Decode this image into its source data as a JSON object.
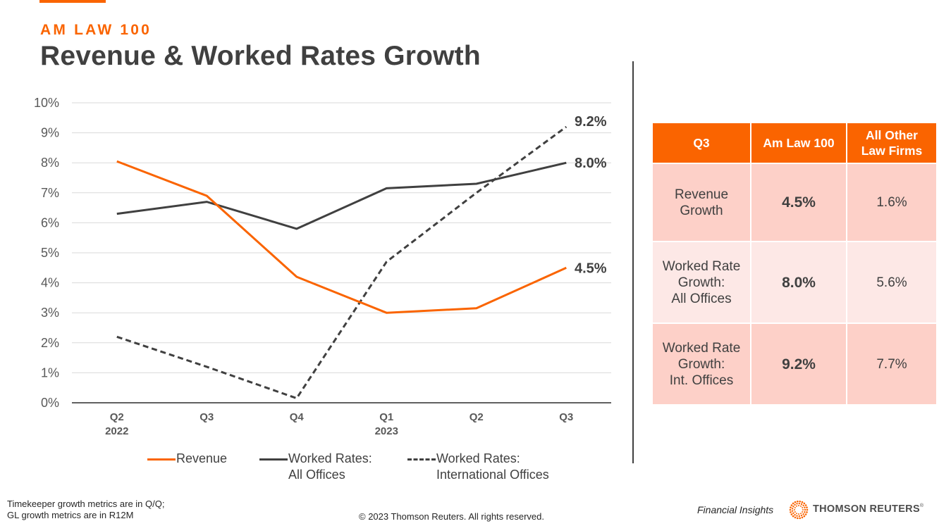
{
  "header": {
    "kicker": "AM LAW 100",
    "title": "Revenue & Worked Rates Growth"
  },
  "colors": {
    "accent": "#fa6400",
    "dark_series": "#404040",
    "table_row_a": "#fdd0c8",
    "table_row_b": "#fde8e6",
    "grid": "#d9d9d9"
  },
  "chart_data": {
    "type": "line",
    "title": "Revenue & Worked Rates Growth",
    "xlabel": "",
    "ylabel": "",
    "categories": [
      "Q2",
      "Q3",
      "Q4",
      "Q1",
      "Q2",
      "Q3"
    ],
    "category_sublabels": [
      "2022",
      "",
      "",
      "2023",
      "",
      ""
    ],
    "ylim": [
      0,
      10
    ],
    "yticks": [
      0,
      1,
      2,
      3,
      4,
      5,
      6,
      7,
      8,
      9,
      10
    ],
    "ytick_labels": [
      "0%",
      "1%",
      "2%",
      "3%",
      "4%",
      "5%",
      "6%",
      "7%",
      "8%",
      "9%",
      "10%"
    ],
    "grid": true,
    "legend_position": "bottom",
    "series": [
      {
        "name": "Revenue",
        "legend_lines": [
          "Revenue"
        ],
        "color": "#fa6400",
        "dashed": false,
        "values": [
          8.05,
          6.9,
          4.2,
          3.0,
          3.15,
          4.5
        ],
        "end_label": "4.5%"
      },
      {
        "name": "Worked Rates: All Offices",
        "legend_lines": [
          "Worked Rates:",
          "All Offices"
        ],
        "color": "#404040",
        "dashed": false,
        "values": [
          6.3,
          6.7,
          5.8,
          7.15,
          7.3,
          8.0
        ],
        "end_label": "8.0%"
      },
      {
        "name": "Worked Rates: International Offices",
        "legend_lines": [
          "Worked Rates:",
          "International Offices"
        ],
        "color": "#404040",
        "dashed": true,
        "values": [
          2.2,
          1.2,
          0.15,
          4.7,
          7.0,
          9.2
        ],
        "end_label": "9.2%"
      }
    ]
  },
  "table": {
    "headers": [
      "Q3",
      "Am Law 100",
      "All Other Law Firms"
    ],
    "header_lines": [
      [
        "Q3"
      ],
      [
        "Am Law 100"
      ],
      [
        "All Other",
        "Law Firms"
      ]
    ],
    "rows": [
      {
        "label_lines": [
          "Revenue",
          "Growth"
        ],
        "amlaw": "4.5%",
        "other": "1.6%"
      },
      {
        "label_lines": [
          "Worked Rate",
          "Growth:",
          "All Offices"
        ],
        "amlaw": "8.0%",
        "other": "5.6%"
      },
      {
        "label_lines": [
          "Worked Rate",
          "Growth:",
          "Int. Offices"
        ],
        "amlaw": "9.2%",
        "other": "7.7%"
      }
    ]
  },
  "footer": {
    "note_lines": [
      "Timekeeper growth metrics are in Q/Q;",
      "GL growth metrics are in R12M"
    ],
    "copyright": "© 2023 Thomson Reuters. All rights reserved.",
    "product": "Financial Insights",
    "brand": "THOMSON REUTERS",
    "brand_mark": "®"
  }
}
